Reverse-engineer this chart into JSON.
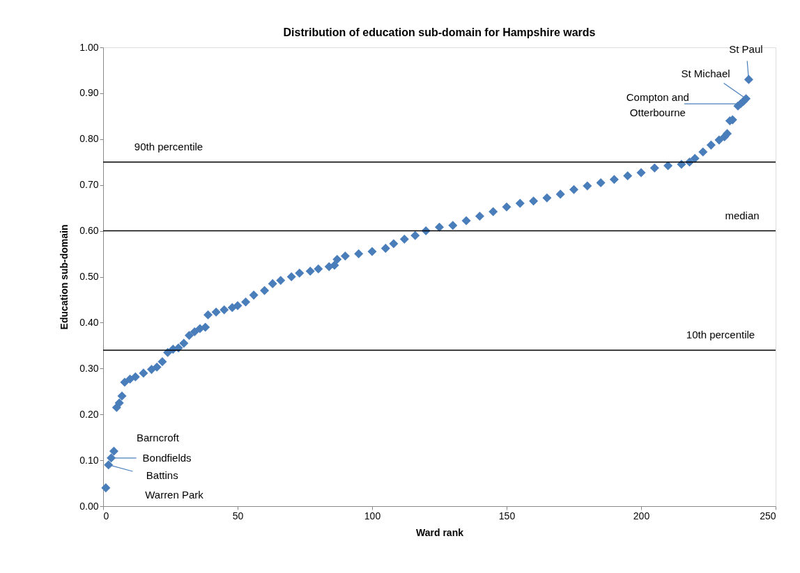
{
  "chart_data": {
    "type": "scatter",
    "title": "Distribution of education sub-domain for Hampshire wards",
    "xlabel": "Ward rank",
    "ylabel": "Education sub-domain",
    "x": [
      1,
      2,
      3,
      4,
      5,
      6,
      7,
      8,
      10,
      12,
      15,
      18,
      20,
      22,
      24,
      26,
      28,
      30,
      32,
      34,
      36,
      38,
      39,
      42,
      45,
      48,
      50,
      53,
      56,
      60,
      63,
      66,
      70,
      73,
      77,
      80,
      84,
      86,
      87,
      90,
      95,
      100,
      105,
      108,
      112,
      116,
      120,
      125,
      130,
      135,
      140,
      145,
      150,
      155,
      160,
      165,
      170,
      175,
      180,
      185,
      190,
      195,
      200,
      205,
      210,
      215,
      218,
      220,
      223,
      226,
      229,
      231,
      232,
      233,
      234,
      236,
      237,
      238,
      239,
      240
    ],
    "series": [
      {
        "color": "#4a7ebb",
        "values": [
          0.04,
          0.09,
          0.105,
          0.12,
          0.215,
          0.225,
          0.24,
          0.27,
          0.277,
          0.282,
          0.29,
          0.298,
          0.303,
          0.315,
          0.335,
          0.342,
          0.345,
          0.355,
          0.372,
          0.38,
          0.387,
          0.39,
          0.417,
          0.423,
          0.428,
          0.433,
          0.437,
          0.445,
          0.46,
          0.47,
          0.485,
          0.492,
          0.5,
          0.508,
          0.512,
          0.517,
          0.522,
          0.525,
          0.538,
          0.545,
          0.55,
          0.555,
          0.562,
          0.572,
          0.582,
          0.59,
          0.6,
          0.608,
          0.612,
          0.622,
          0.632,
          0.642,
          0.652,
          0.66,
          0.665,
          0.672,
          0.68,
          0.69,
          0.698,
          0.705,
          0.712,
          0.72,
          0.727,
          0.737,
          0.742,
          0.745,
          0.75,
          0.758,
          0.772,
          0.787,
          0.798,
          0.805,
          0.812,
          0.84,
          0.842,
          0.872,
          0.877,
          0.882,
          0.888,
          0.93
        ]
      }
    ],
    "xlim": [
      0,
      250
    ],
    "xticks": [
      0,
      50,
      100,
      150,
      200,
      250
    ],
    "ylim": [
      0,
      1
    ],
    "yticks": [
      {
        "value": 0,
        "label": "0.00"
      },
      {
        "value": 0.1,
        "label": "0.10"
      },
      {
        "value": 0.2,
        "label": "0.20"
      },
      {
        "value": 0.3,
        "label": "0.30"
      },
      {
        "value": 0.4,
        "label": "0.40"
      },
      {
        "value": 0.5,
        "label": "0.50"
      },
      {
        "value": 0.6,
        "label": "0.60"
      },
      {
        "value": 0.7,
        "label": "0.70"
      },
      {
        "value": 0.8,
        "label": "0.80"
      },
      {
        "value": 0.9,
        "label": "0.90"
      },
      {
        "value": 1,
        "label": "1.00"
      }
    ],
    "ref_lines": [
      {
        "axis": "y",
        "value": 0.75,
        "label": "90th percentile",
        "color": "#000000"
      },
      {
        "axis": "y",
        "value": 0.6,
        "label": "median",
        "color": "#000000"
      },
      {
        "axis": "y",
        "value": 0.34,
        "label": "10th percentile",
        "color": "#000000"
      }
    ],
    "annotations": [
      "Warren Park",
      {
        "text": "Battins",
        "x": 2,
        "y": 0.09
      },
      {
        "text": "Bondfields",
        "x": 3,
        "y": 0.105
      },
      {
        "text": "Barncroft",
        "x": 4,
        "y": 0.12
      },
      {
        "text": "Compton and\nOtterbourne",
        "x": 237,
        "y": 0.877
      },
      {
        "text": "St Michael",
        "x": 239,
        "y": 0.888
      },
      {
        "text": "St Paul",
        "x": 240,
        "y": 0.93
      }
    ],
    "marker": "diamond",
    "grid": false,
    "legend": false
  }
}
